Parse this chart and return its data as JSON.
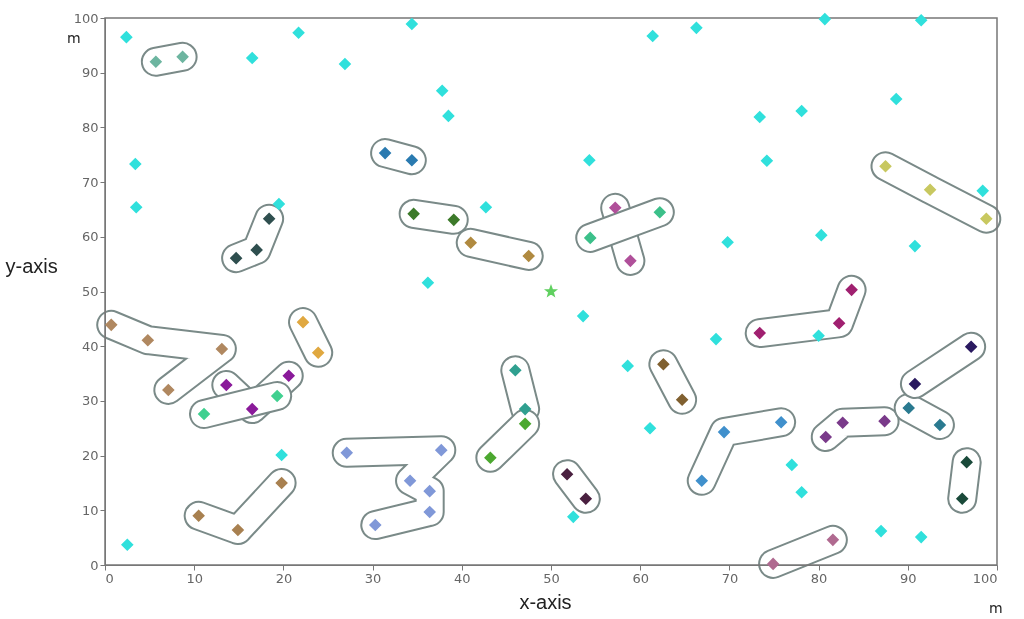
{
  "chart_data": {
    "type": "scatter",
    "xlabel": "x-axis",
    "ylabel": "y-axis",
    "xlim": [
      0,
      100
    ],
    "ylim": [
      0,
      100
    ],
    "xticks": [
      0,
      10,
      20,
      30,
      40,
      50,
      60,
      70,
      80,
      90,
      100
    ],
    "yticks": [
      0,
      10,
      20,
      30,
      40,
      50,
      60,
      70,
      80,
      90,
      100
    ],
    "marker": "diamond",
    "annotations": [
      "m",
      "m"
    ],
    "series": [
      {
        "color": "#30e0dc",
        "x": [
          2.4,
          16.5,
          21.7,
          26.9,
          34.4,
          37.8,
          38.5,
          3.4,
          3.5,
          19.5,
          42.7,
          36.2,
          54.3,
          61.4,
          66.3,
          73.4,
          78.1,
          80.7,
          91.5,
          88.7,
          74.2,
          69.8,
          80.3,
          90.8,
          98.4,
          53.6,
          58.6,
          68.5,
          80.0,
          61.1,
          77.0,
          78.1,
          52.5,
          87.0,
          91.5,
          19.8,
          2.5
        ],
        "values": [
          96.5,
          92.7,
          97.3,
          91.6,
          98.9,
          86.7,
          82.1,
          73.3,
          65.4,
          66.0,
          65.4,
          51.6,
          74.0,
          96.7,
          98.2,
          81.9,
          83.0,
          99.8,
          99.6,
          85.2,
          73.9,
          59.0,
          60.3,
          58.3,
          68.4,
          45.5,
          36.4,
          41.3,
          41.9,
          25.0,
          18.3,
          13.3,
          8.8,
          6.2,
          5.1,
          20.1,
          3.7
        ]
      },
      {
        "color": "#6db5a0",
        "x": [
          5.7,
          8.7
        ],
        "values": [
          92.0,
          92.9
        ]
      },
      {
        "color": "#2f4f4f",
        "x": [
          14.7,
          17.0,
          18.4
        ],
        "values": [
          56.1,
          57.6,
          63.3
        ]
      },
      {
        "color": "#2a7ab0",
        "x": [
          31.4,
          34.4
        ],
        "values": [
          75.3,
          74.0
        ]
      },
      {
        "color": "#3d7a2a",
        "x": [
          34.6,
          39.1
        ],
        "values": [
          64.2,
          63.1
        ]
      },
      {
        "color": "#b08a40",
        "x": [
          41.0,
          47.5
        ],
        "values": [
          58.9,
          56.5
        ]
      },
      {
        "color": "#b0509a",
        "x": [
          57.2,
          58.9
        ],
        "values": [
          65.3,
          55.6
        ]
      },
      {
        "color": "#3cc08a",
        "x": [
          54.4,
          62.2
        ],
        "values": [
          59.8,
          64.5
        ]
      },
      {
        "color": "#c8c860",
        "x": [
          87.5,
          92.5,
          98.8
        ],
        "values": [
          72.9,
          68.6,
          63.3
        ]
      },
      {
        "color": "#a02070",
        "x": [
          73.4,
          82.3,
          83.7
        ],
        "values": [
          42.4,
          44.2,
          50.3
        ]
      },
      {
        "color": "#b08860",
        "x": [
          0.7,
          4.8,
          13.1,
          7.1
        ],
        "values": [
          43.9,
          41.1,
          39.5,
          32.0
        ]
      },
      {
        "color": "#e0a840",
        "x": [
          22.2,
          23.9
        ],
        "values": [
          44.4,
          38.8
        ]
      },
      {
        "color": "#8a1a9a",
        "x": [
          13.6,
          16.5,
          20.6
        ],
        "values": [
          32.9,
          28.5,
          34.6
        ]
      },
      {
        "color": "#40d090",
        "x": [
          11.1,
          19.3
        ],
        "values": [
          27.6,
          30.9
        ]
      },
      {
        "color": "#a88050",
        "x": [
          10.5,
          14.9,
          19.8
        ],
        "values": [
          9.0,
          6.4,
          15.0
        ]
      },
      {
        "color": "#8098d8",
        "x": [
          27.1,
          37.7,
          34.2,
          36.4,
          36.4,
          30.3
        ],
        "values": [
          20.5,
          21.0,
          15.4,
          13.5,
          9.7,
          7.3
        ]
      },
      {
        "color": "#30a090",
        "x": [
          46.0,
          47.1
        ],
        "values": [
          35.6,
          28.5
        ]
      },
      {
        "color": "#4ca830",
        "x": [
          47.1,
          43.2
        ],
        "values": [
          25.8,
          19.6
        ]
      },
      {
        "color": "#4a2040",
        "x": [
          51.8,
          53.9
        ],
        "values": [
          16.6,
          12.1
        ]
      },
      {
        "color": "#806030",
        "x": [
          62.6,
          64.7
        ],
        "values": [
          36.7,
          30.2
        ]
      },
      {
        "color": "#4090cc",
        "x": [
          66.9,
          69.4,
          75.8
        ],
        "values": [
          15.4,
          24.3,
          26.1
        ]
      },
      {
        "color": "#7a3a8a",
        "x": [
          80.8,
          82.7,
          87.4
        ],
        "values": [
          23.4,
          26.0,
          26.3
        ]
      },
      {
        "color": "#2a7a90",
        "x": [
          90.1,
          93.6
        ],
        "values": [
          28.7,
          25.6
        ]
      },
      {
        "color": "#2a1a60",
        "x": [
          90.8,
          97.1
        ],
        "values": [
          33.1,
          39.9
        ]
      },
      {
        "color": "#1a4a3a",
        "x": [
          96.6,
          96.1
        ],
        "values": [
          18.8,
          12.1
        ]
      },
      {
        "color": "#b06a90",
        "x": [
          74.9,
          81.6
        ],
        "values": [
          0.2,
          4.6
        ]
      },
      {
        "color": "#60d060",
        "marker": "star",
        "x": [
          50
        ],
        "values": [
          50
        ]
      }
    ]
  }
}
